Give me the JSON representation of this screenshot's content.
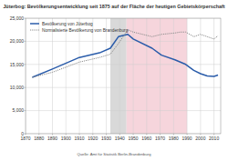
{
  "chart_data": {
    "type": "line",
    "title": "Jüterbog: Bevölkerungsentwicklung seit 1875 auf der Fläche der heutigen Gebietskörperschaft",
    "source": "Quelle: Amt für Statistik Berlin-Brandenburg",
    "x": [
      1875,
      1890,
      1910,
      1925,
      1933,
      1939,
      1946,
      1950,
      1964,
      1971,
      1981,
      1985,
      1989,
      1995,
      2000,
      2005,
      2010,
      2013
    ],
    "series": [
      {
        "name": "Bevölkerung von Jüterbog",
        "color": "#2a5caa",
        "line_style": "solid",
        "values": [
          12200,
          14000,
          16500,
          17500,
          18500,
          21000,
          21500,
          20500,
          18500,
          17000,
          16000,
          15500,
          15000,
          13700,
          13000,
          12500,
          12400,
          12700
        ]
      },
      {
        "name": "Normalisierte Bevölkerung von Brandenburg",
        "color": "#8c8c8c",
        "line_style": "dotted",
        "values": [
          12200,
          13300,
          15500,
          16500,
          17200,
          19500,
          22500,
          22000,
          21000,
          21500,
          21800,
          22000,
          22000,
          21000,
          21500,
          21000,
          20500,
          21200
        ]
      }
    ],
    "periods": [
      {
        "start": 1933,
        "end": 1945,
        "color": "#d9d9d9"
      },
      {
        "start": 1945,
        "end": 1990,
        "color": "#f6d5dc"
      }
    ],
    "xlim": [
      1870,
      2015
    ],
    "ylim": [
      0,
      25000
    ],
    "xticks": [
      1870,
      1880,
      1890,
      1900,
      1910,
      1920,
      1930,
      1940,
      1950,
      1960,
      1970,
      1980,
      1990,
      2000,
      2010
    ],
    "yticks": [
      0,
      {
        "value": 5000,
        "label": "5,000"
      },
      {
        "value": 10000,
        "label": "10,000"
      },
      {
        "value": 15000,
        "label": "15,000"
      },
      {
        "value": 20000,
        "label": "20,000"
      },
      {
        "value": 25000,
        "label": "25,000"
      }
    ],
    "grid": true,
    "legend": "upper left"
  }
}
